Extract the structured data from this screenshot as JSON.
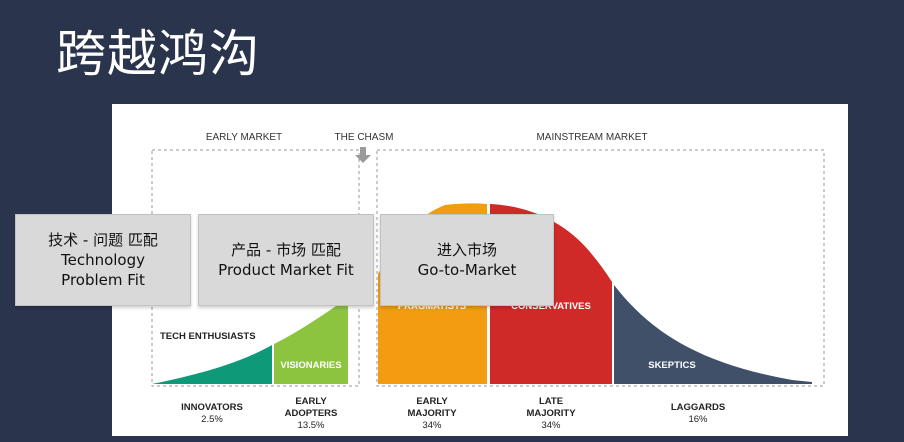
{
  "title": "跨越鸿沟",
  "diagram": {
    "early_market": "EARLY MARKET",
    "the_chasm": "THE CHASM",
    "mainstream_market": "MAINSTREAM MARKET",
    "segment_labels": {
      "tech_enthusiasts": "TECH ENTHUSIASTS",
      "visionaries": "VISIONARIES",
      "pragmatists": "PRAGMATISTS",
      "conservatives": "CONSERVATIVES",
      "skeptics": "SKEPTICS"
    },
    "groups": [
      {
        "name": "INNOVATORS",
        "name2": "",
        "pct": "2.5%"
      },
      {
        "name": "EARLY",
        "name2": "ADOPTERS",
        "pct": "13.5%"
      },
      {
        "name": "EARLY",
        "name2": "MAJORITY",
        "pct": "34%"
      },
      {
        "name": "LATE",
        "name2": "MAJORITY",
        "pct": "34%"
      },
      {
        "name": "LAGGARDS",
        "name2": "",
        "pct": "16%"
      }
    ],
    "colors": {
      "innovators": "#0e9a78",
      "early_adopters": "#8dc43f",
      "early_majority": "#f39c12",
      "late_majority": "#cf2a27",
      "laggards": "#3f5068"
    }
  },
  "overlays": [
    {
      "line1": "技术 - 问题 匹配",
      "line2": "Technology",
      "line3": "Problem Fit"
    },
    {
      "line1": "产品 - 市场 匹配",
      "line2": "Product Market Fit"
    },
    {
      "line1": "进入市场",
      "line2": "Go-to-Market"
    }
  ]
}
